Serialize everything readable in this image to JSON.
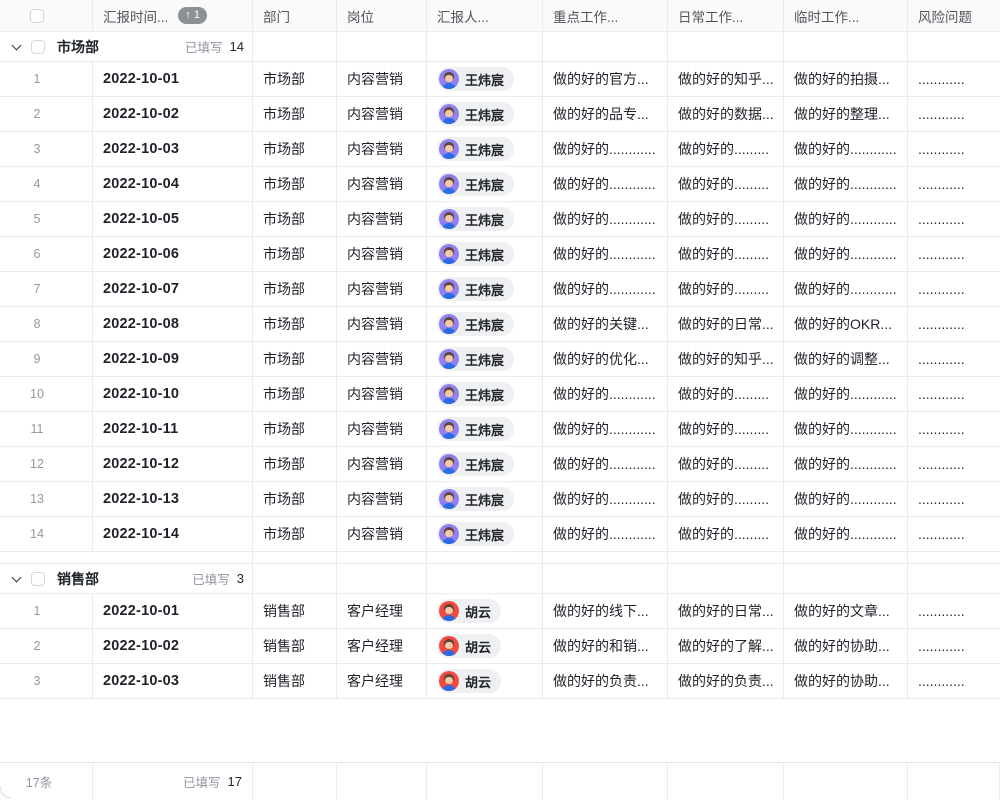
{
  "header": {
    "columns": [
      {
        "label": ""
      },
      {
        "label": "汇报时间...",
        "sort_badge": "↑ 1"
      },
      {
        "label": "部门"
      },
      {
        "label": "岗位"
      },
      {
        "label": "汇报人..."
      },
      {
        "label": "重点工作..."
      },
      {
        "label": "日常工作..."
      },
      {
        "label": "临时工作..."
      },
      {
        "label": "风险问题"
      }
    ]
  },
  "groups": [
    {
      "name": "市场部",
      "filled_label": "已填写",
      "filled_count": "14",
      "rows": [
        {
          "num": "1",
          "date": "2022-10-01",
          "dept": "市场部",
          "post": "内容营销",
          "person": "王炜宸",
          "avatar_color": "#9080f0",
          "key_work": "做的好的官方...",
          "daily_work": "做的好的知乎...",
          "temp_work": "做的好的拍摄...",
          "risk": "............"
        },
        {
          "num": "2",
          "date": "2022-10-02",
          "dept": "市场部",
          "post": "内容营销",
          "person": "王炜宸",
          "avatar_color": "#9080f0",
          "key_work": "做的好的品专...",
          "daily_work": "做的好的数据...",
          "temp_work": "做的好的整理...",
          "risk": "............"
        },
        {
          "num": "3",
          "date": "2022-10-03",
          "dept": "市场部",
          "post": "内容营销",
          "person": "王炜宸",
          "avatar_color": "#9080f0",
          "key_work": "做的好的............",
          "daily_work": "做的好的.........",
          "temp_work": "做的好的............",
          "risk": "............"
        },
        {
          "num": "4",
          "date": "2022-10-04",
          "dept": "市场部",
          "post": "内容营销",
          "person": "王炜宸",
          "avatar_color": "#9080f0",
          "key_work": "做的好的............",
          "daily_work": "做的好的.........",
          "temp_work": "做的好的............",
          "risk": "............"
        },
        {
          "num": "5",
          "date": "2022-10-05",
          "dept": "市场部",
          "post": "内容营销",
          "person": "王炜宸",
          "avatar_color": "#9080f0",
          "key_work": "做的好的............",
          "daily_work": "做的好的.........",
          "temp_work": "做的好的............",
          "risk": "............"
        },
        {
          "num": "6",
          "date": "2022-10-06",
          "dept": "市场部",
          "post": "内容营销",
          "person": "王炜宸",
          "avatar_color": "#9080f0",
          "key_work": "做的好的............",
          "daily_work": "做的好的.........",
          "temp_work": "做的好的............",
          "risk": "............"
        },
        {
          "num": "7",
          "date": "2022-10-07",
          "dept": "市场部",
          "post": "内容营销",
          "person": "王炜宸",
          "avatar_color": "#9080f0",
          "key_work": "做的好的............",
          "daily_work": "做的好的.........",
          "temp_work": "做的好的............",
          "risk": "............"
        },
        {
          "num": "8",
          "date": "2022-10-08",
          "dept": "市场部",
          "post": "内容营销",
          "person": "王炜宸",
          "avatar_color": "#9080f0",
          "key_work": "做的好的关键...",
          "daily_work": "做的好的日常...",
          "temp_work": "做的好的OKR...",
          "risk": "............"
        },
        {
          "num": "9",
          "date": "2022-10-09",
          "dept": "市场部",
          "post": "内容营销",
          "person": "王炜宸",
          "avatar_color": "#9080f0",
          "key_work": "做的好的优化...",
          "daily_work": "做的好的知乎...",
          "temp_work": "做的好的调整...",
          "risk": "............"
        },
        {
          "num": "10",
          "date": "2022-10-10",
          "dept": "市场部",
          "post": "内容营销",
          "person": "王炜宸",
          "avatar_color": "#9080f0",
          "key_work": "做的好的............",
          "daily_work": "做的好的.........",
          "temp_work": "做的好的............",
          "risk": "............"
        },
        {
          "num": "11",
          "date": "2022-10-11",
          "dept": "市场部",
          "post": "内容营销",
          "person": "王炜宸",
          "avatar_color": "#9080f0",
          "key_work": "做的好的............",
          "daily_work": "做的好的.........",
          "temp_work": "做的好的............",
          "risk": "............"
        },
        {
          "num": "12",
          "date": "2022-10-12",
          "dept": "市场部",
          "post": "内容营销",
          "person": "王炜宸",
          "avatar_color": "#9080f0",
          "key_work": "做的好的............",
          "daily_work": "做的好的.........",
          "temp_work": "做的好的............",
          "risk": "............"
        },
        {
          "num": "13",
          "date": "2022-10-13",
          "dept": "市场部",
          "post": "内容营销",
          "person": "王炜宸",
          "avatar_color": "#9080f0",
          "key_work": "做的好的............",
          "daily_work": "做的好的.........",
          "temp_work": "做的好的............",
          "risk": "............"
        },
        {
          "num": "14",
          "date": "2022-10-14",
          "dept": "市场部",
          "post": "内容营销",
          "person": "王炜宸",
          "avatar_color": "#9080f0",
          "key_work": "做的好的............",
          "daily_work": "做的好的.........",
          "temp_work": "做的好的............",
          "risk": "............"
        }
      ]
    },
    {
      "name": "销售部",
      "filled_label": "已填写",
      "filled_count": "3",
      "rows": [
        {
          "num": "1",
          "date": "2022-10-01",
          "dept": "销售部",
          "post": "客户经理",
          "person": "胡云",
          "avatar_color": "#f24a40",
          "key_work": "做的好的线下...",
          "daily_work": "做的好的日常...",
          "temp_work": "做的好的文章...",
          "risk": "............"
        },
        {
          "num": "2",
          "date": "2022-10-02",
          "dept": "销售部",
          "post": "客户经理",
          "person": "胡云",
          "avatar_color": "#f24a40",
          "key_work": "做的好的和销...",
          "daily_work": "做的好的了解...",
          "temp_work": "做的好的协助...",
          "risk": "............"
        },
        {
          "num": "3",
          "date": "2022-10-03",
          "dept": "销售部",
          "post": "客户经理",
          "person": "胡云",
          "avatar_color": "#f24a40",
          "key_work": "做的好的负责...",
          "daily_work": "做的好的负责...",
          "temp_work": "做的好的协助...",
          "risk": "............"
        }
      ]
    }
  ],
  "footer": {
    "total": "17条",
    "filled_label": "已填写",
    "filled_count": "17"
  },
  "colors": {
    "badge_bg": "#8d9096",
    "chip_bg": "#eff0f2",
    "grid_line": "#ebebec",
    "header_bg": "#fafafa",
    "text_primary": "#1f2329",
    "text_secondary": "#8f959e",
    "avatar_marketing": "#9080f0",
    "avatar_sales": "#f24a40"
  }
}
